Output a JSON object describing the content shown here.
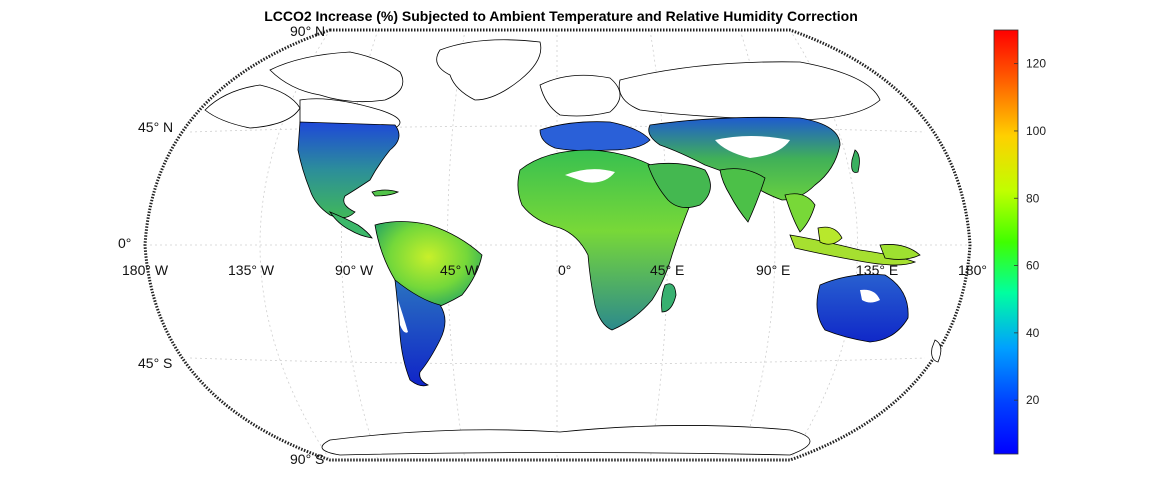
{
  "title": "LCCO2 Increase (%) Subjected to Ambient Temperature and Relative Humidity Correction",
  "lat_labels": {
    "n90": "90° N",
    "n45": "45° N",
    "eq": "0°",
    "s45": "45° S",
    "s90": "90° S"
  },
  "lon_labels": [
    "180° W",
    "135° W",
    "90° W",
    "45° W",
    "0°",
    "45° E",
    "90° E",
    "135° E",
    "180°"
  ],
  "colorbar": {
    "min": 4,
    "max": 130,
    "ticks": [
      "20",
      "40",
      "60",
      "80",
      "100",
      "120"
    ],
    "tick_values": [
      20,
      40,
      60,
      80,
      100,
      120
    ],
    "colormap": "jet"
  },
  "colors": {
    "land_outline": "#000000",
    "low": "#1032d8",
    "mid": "#18b84a",
    "high": "#9ae82a"
  }
}
